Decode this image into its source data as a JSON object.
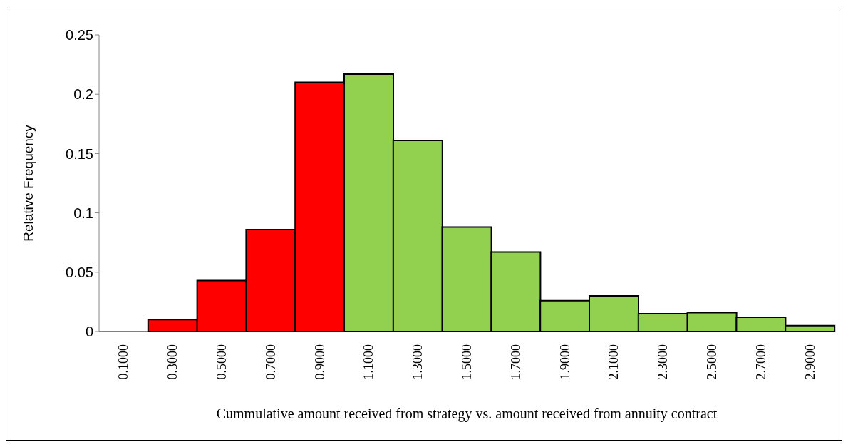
{
  "chart_data": {
    "type": "bar",
    "xlabel": "Cummulative amount received from strategy vs. amount received from annuity contract",
    "ylabel": "Relative Frequency",
    "categories": [
      "0.1000",
      "0.3000",
      "0.5000",
      "0.7000",
      "0.9000",
      "1.1000",
      "1.3000",
      "1.5000",
      "1.7000",
      "1.9000",
      "2.1000",
      "2.3000",
      "2.5000",
      "2.7000",
      "2.9000"
    ],
    "values": [
      0,
      0.01,
      0.043,
      0.086,
      0.21,
      0.217,
      0.161,
      0.088,
      0.067,
      0.026,
      0.03,
      0.015,
      0.016,
      0.012,
      0.005
    ],
    "colors": [
      "#ff0000",
      "#ff0000",
      "#ff0000",
      "#ff0000",
      "#ff0000",
      "#92d050",
      "#92d050",
      "#92d050",
      "#92d050",
      "#92d050",
      "#92d050",
      "#92d050",
      "#92d050",
      "#92d050",
      "#92d050"
    ],
    "ylim": [
      0,
      0.25
    ],
    "yticks": [
      0,
      0.05,
      0.1,
      0.15,
      0.2,
      0.25
    ],
    "grid": false,
    "legend": false
  }
}
